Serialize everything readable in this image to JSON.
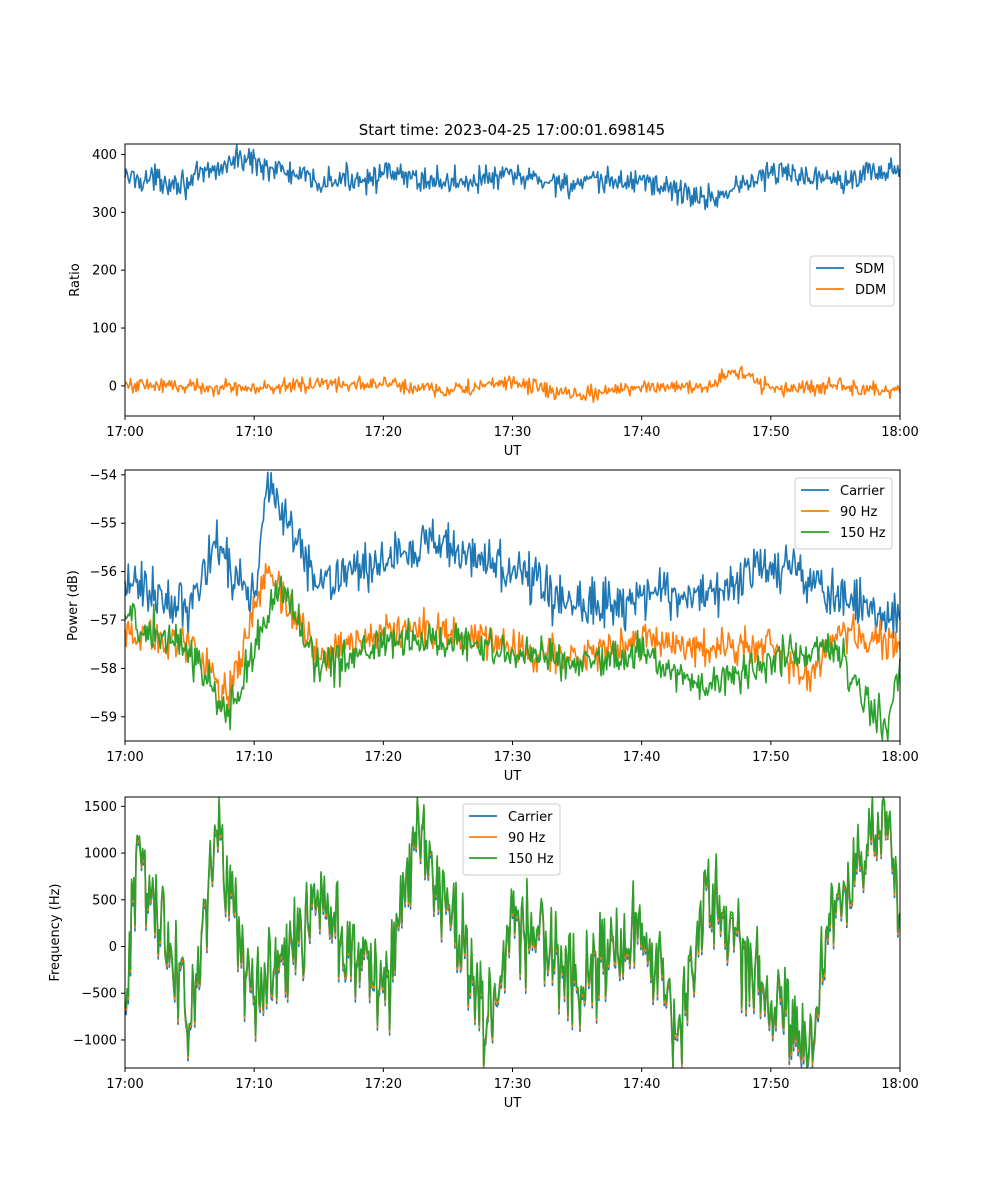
{
  "figure": {
    "title": "Start time: 2023-04-25 17:00:01.698145"
  },
  "colors": {
    "blue": "#1f77b4",
    "orange": "#ff7f0e",
    "green": "#2ca02c"
  },
  "chart_data": [
    {
      "type": "line",
      "title": "Start time: 2023-04-25 17:00:01.698145",
      "xlabel": "UT",
      "ylabel": "Ratio",
      "xlim": [
        "17:00",
        "18:00"
      ],
      "ylim": [
        -52,
        418
      ],
      "x_ticks": [
        "17:00",
        "17:10",
        "17:20",
        "17:30",
        "17:40",
        "17:50",
        "18:00"
      ],
      "y_ticks": [
        0,
        100,
        200,
        300,
        400
      ],
      "grid": false,
      "legend_position": "center-right",
      "series": [
        {
          "name": "SDM",
          "color": "#1f77b4",
          "x": [
            "17:00",
            "17:05",
            "17:09",
            "17:15",
            "17:20",
            "17:25",
            "17:30",
            "17:35",
            "17:40",
            "17:45",
            "17:50",
            "17:55",
            "18:00"
          ],
          "values": [
            360,
            352,
            395,
            350,
            365,
            352,
            362,
            348,
            356,
            322,
            368,
            360,
            375
          ]
        },
        {
          "name": "DDM",
          "color": "#ff7f0e",
          "x": [
            "17:00",
            "17:05",
            "17:10",
            "17:15",
            "17:20",
            "17:25",
            "17:30",
            "17:35",
            "17:40",
            "17:45",
            "17:47",
            "17:50",
            "17:55",
            "18:00"
          ],
          "values": [
            2,
            0,
            -5,
            4,
            3,
            -8,
            6,
            -18,
            0,
            -2,
            27,
            -5,
            0,
            -12
          ]
        }
      ]
    },
    {
      "type": "line",
      "title": "",
      "xlabel": "UT",
      "ylabel": "Power (dB)",
      "xlim": [
        "17:00",
        "18:00"
      ],
      "ylim": [
        -59.5,
        -53.9
      ],
      "x_ticks": [
        "17:00",
        "17:10",
        "17:20",
        "17:30",
        "17:40",
        "17:50",
        "18:00"
      ],
      "y_ticks": [
        -54,
        -55,
        -56,
        -57,
        -58,
        -59
      ],
      "grid": false,
      "legend_position": "top-right",
      "series": [
        {
          "name": "Carrier",
          "color": "#1f77b4",
          "x": [
            "17:00",
            "17:05",
            "17:07",
            "17:10",
            "17:11",
            "17:15",
            "17:20",
            "17:24",
            "17:30",
            "17:35",
            "17:40",
            "17:45",
            "17:51",
            "17:55",
            "18:00"
          ],
          "values": [
            -56.2,
            -56.8,
            -55.5,
            -56.6,
            -54.2,
            -56.3,
            -55.8,
            -55.4,
            -56.0,
            -56.7,
            -56.5,
            -56.4,
            -55.9,
            -56.5,
            -57.0
          ]
        },
        {
          "name": "90 Hz",
          "color": "#ff7f0e",
          "x": [
            "17:00",
            "17:05",
            "17:08",
            "17:11",
            "17:15",
            "17:20",
            "17:25",
            "17:30",
            "17:35",
            "17:40",
            "17:45",
            "17:50",
            "17:53",
            "17:55",
            "18:00"
          ],
          "values": [
            -57.2,
            -57.5,
            -58.6,
            -56.0,
            -57.8,
            -57.2,
            -57.3,
            -57.6,
            -57.8,
            -57.4,
            -57.6,
            -57.5,
            -58.2,
            -57.3,
            -57.6
          ]
        },
        {
          "name": "150 Hz",
          "color": "#2ca02c",
          "x": [
            "17:00",
            "17:05",
            "17:08",
            "17:12",
            "17:15",
            "17:20",
            "17:25",
            "17:30",
            "17:35",
            "17:40",
            "17:45",
            "17:50",
            "17:55",
            "17:59",
            "18:00"
          ],
          "values": [
            -56.9,
            -57.6,
            -59.0,
            -56.3,
            -58.0,
            -57.5,
            -57.4,
            -57.6,
            -57.9,
            -57.7,
            -58.4,
            -57.8,
            -57.6,
            -59.3,
            -57.8
          ]
        }
      ]
    },
    {
      "type": "line",
      "title": "",
      "xlabel": "UT",
      "ylabel": "Frequency (Hz)",
      "xlim": [
        "17:00",
        "18:00"
      ],
      "ylim": [
        -1300,
        1600
      ],
      "x_ticks": [
        "17:00",
        "17:10",
        "17:20",
        "17:30",
        "17:40",
        "17:50",
        "18:00"
      ],
      "y_ticks": [
        -1000,
        -500,
        0,
        500,
        1000,
        1500
      ],
      "grid": false,
      "legend_position": "top-center",
      "series": [
        {
          "name": "Carrier",
          "color": "#1f77b4",
          "x": [
            "17:00",
            "17:01",
            "17:05",
            "17:07",
            "17:10",
            "17:15",
            "17:20",
            "17:23",
            "17:25",
            "17:28",
            "17:30",
            "17:35",
            "17:40",
            "17:43",
            "17:45",
            "17:50",
            "17:53",
            "17:55",
            "17:59",
            "18:00"
          ],
          "values": [
            -700,
            1100,
            -900,
            1200,
            -600,
            400,
            -500,
            1250,
            400,
            -850,
            300,
            -500,
            200,
            -950,
            600,
            -700,
            -1150,
            300,
            1400,
            300
          ]
        },
        {
          "name": "90 Hz",
          "color": "#ff7f0e",
          "x": [
            "17:00",
            "17:01",
            "17:05",
            "17:07",
            "17:10",
            "17:15",
            "17:20",
            "17:23",
            "17:25",
            "17:28",
            "17:30",
            "17:35",
            "17:40",
            "17:43",
            "17:45",
            "17:50",
            "17:53",
            "17:55",
            "17:59",
            "18:00"
          ],
          "values": [
            -650,
            1130,
            -870,
            1230,
            -570,
            430,
            -470,
            1280,
            430,
            -820,
            330,
            -470,
            230,
            -920,
            630,
            -670,
            -1100,
            330,
            1420,
            330
          ]
        },
        {
          "name": "150 Hz",
          "color": "#2ca02c",
          "x": [
            "17:00",
            "17:01",
            "17:05",
            "17:07",
            "17:10",
            "17:15",
            "17:20",
            "17:23",
            "17:25",
            "17:28",
            "17:30",
            "17:35",
            "17:40",
            "17:43",
            "17:45",
            "17:50",
            "17:53",
            "17:55",
            "17:59",
            "18:00"
          ],
          "values": [
            -620,
            1160,
            -840,
            1260,
            -540,
            460,
            -440,
            1300,
            460,
            -790,
            360,
            -440,
            260,
            -890,
            660,
            -640,
            -1060,
            360,
            1450,
            360
          ]
        }
      ]
    }
  ]
}
